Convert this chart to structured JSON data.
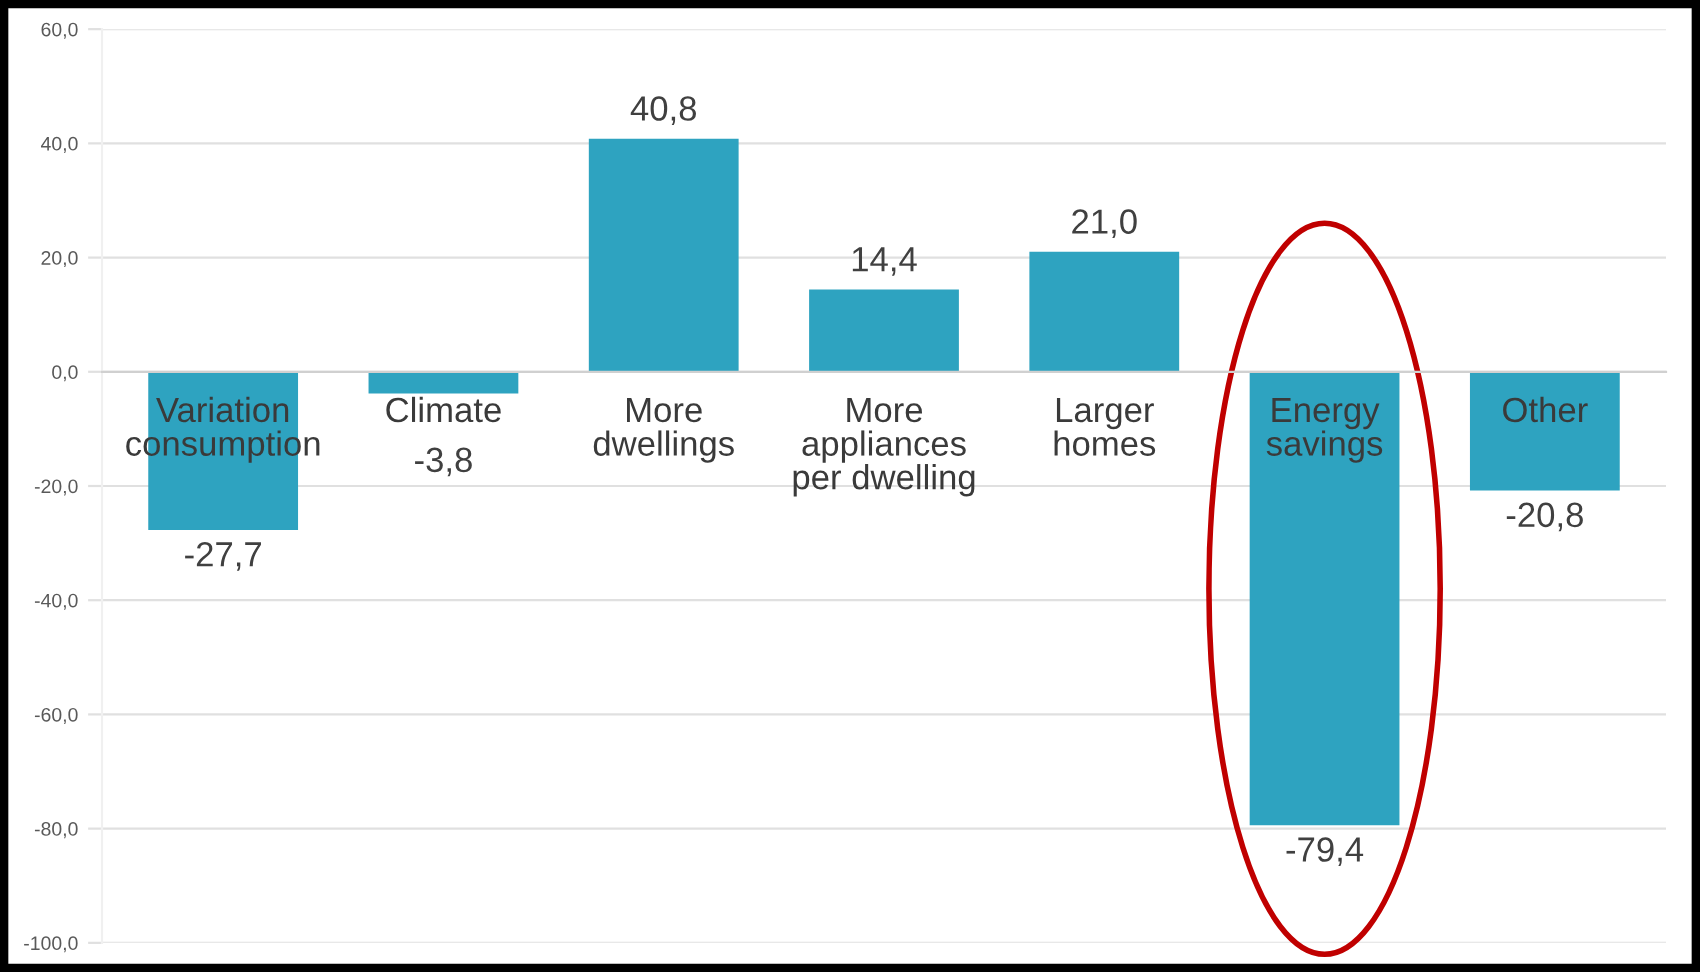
{
  "chart_data": {
    "type": "bar",
    "categories": [
      "Variation\nconsumption",
      "Climate",
      "More\ndwellings",
      "More\nappliances\nper dwelling",
      "Larger\nhomes",
      "Energy\nsavings",
      "Other"
    ],
    "values": [
      -27.7,
      -3.8,
      40.8,
      14.4,
      21.0,
      -79.4,
      -20.8
    ],
    "value_labels": [
      "-27,7",
      "-3,8",
      "40,8",
      "14,4",
      "21,0",
      "-79,4",
      "-20,8"
    ],
    "color": "#2ea3c0",
    "ylim": [
      -100,
      60
    ],
    "yticks": [
      {
        "value": -100,
        "label": "-100,0"
      },
      {
        "value": -80,
        "label": "-80,0"
      },
      {
        "value": -60,
        "label": "-60,0"
      },
      {
        "value": -40,
        "label": "-40,0"
      },
      {
        "value": -20,
        "label": "-20,0"
      },
      {
        "value": 0,
        "label": "0,0"
      },
      {
        "value": 20,
        "label": "20,0"
      },
      {
        "value": 40,
        "label": "40,0"
      },
      {
        "value": 60,
        "label": "60,0"
      }
    ],
    "grid": "y",
    "legend": false
  }
}
